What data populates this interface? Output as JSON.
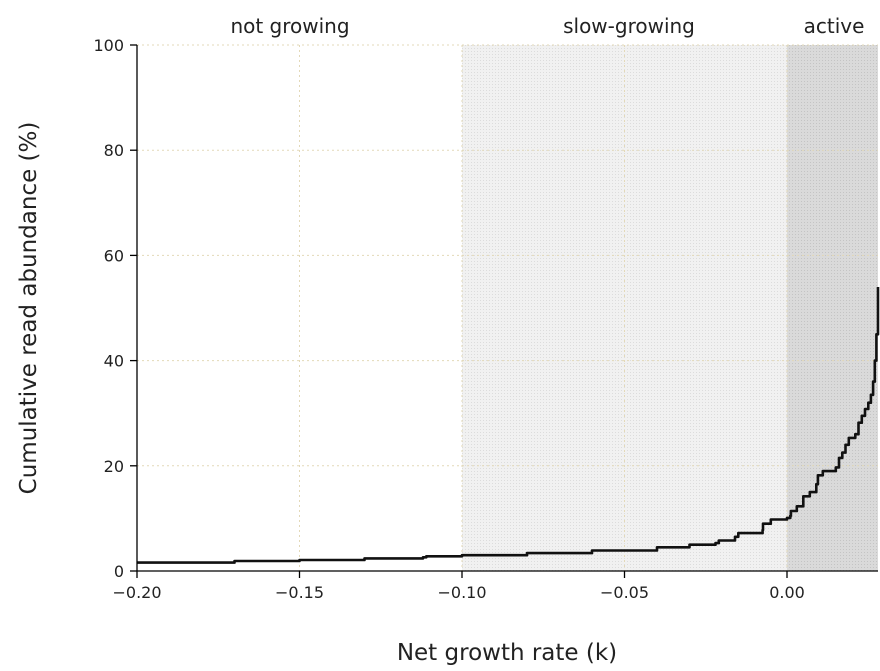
{
  "chart_data": {
    "type": "line",
    "title": "",
    "xlabel": "Net growth rate (k)",
    "ylabel": "Cumulative read abundance (%)",
    "xlim": [
      -0.2,
      0.028
    ],
    "ylim": [
      0,
      100
    ],
    "x_ticks": [
      -0.2,
      -0.15,
      -0.1,
      -0.05,
      0.0
    ],
    "x_tick_labels": [
      "−0.20",
      "−0.15",
      "−0.10",
      "−0.05",
      "0.00"
    ],
    "y_ticks": [
      0,
      20,
      40,
      60,
      80,
      100
    ],
    "y_tick_labels": [
      "0",
      "20",
      "40",
      "60",
      "80",
      "100"
    ],
    "grid": true,
    "regions": [
      {
        "label": "not growing",
        "x_range": [
          -0.2,
          -0.1
        ],
        "color": "#ffffff"
      },
      {
        "label": "slow-growing",
        "x_range": [
          -0.1,
          0.0
        ],
        "color": "#eeeeee"
      },
      {
        "label": "active",
        "x_range": [
          0.0,
          0.028
        ],
        "color": "#d6d6d6"
      }
    ],
    "series": [
      {
        "color": "#111111",
        "x": [
          -0.2,
          -0.17,
          -0.15,
          -0.13,
          -0.112,
          -0.111,
          -0.1,
          -0.08,
          -0.06,
          -0.04,
          -0.03,
          -0.022,
          -0.021,
          -0.016,
          -0.015,
          -0.0075,
          -0.0074,
          -0.005,
          0.0,
          0.001,
          0.0012,
          0.003,
          0.005,
          0.007,
          0.009,
          0.0095,
          0.011,
          0.015,
          0.016,
          0.017,
          0.018,
          0.019,
          0.021,
          0.022,
          0.023,
          0.024,
          0.025,
          0.0258,
          0.0265,
          0.027,
          0.0275,
          0.028
        ],
        "y": [
          1.6,
          1.9,
          2.1,
          2.4,
          2.6,
          2.8,
          3.0,
          3.4,
          3.9,
          4.5,
          5.0,
          5.3,
          5.8,
          6.5,
          7.2,
          7.8,
          9.0,
          9.8,
          10.1,
          10.5,
          11.4,
          12.3,
          14.2,
          15.0,
          16.5,
          18.2,
          19.0,
          19.7,
          21.5,
          22.5,
          24.0,
          25.3,
          26.0,
          28.2,
          29.5,
          30.8,
          32.0,
          33.5,
          36.0,
          40.0,
          45.0,
          54.0
        ]
      }
    ]
  }
}
